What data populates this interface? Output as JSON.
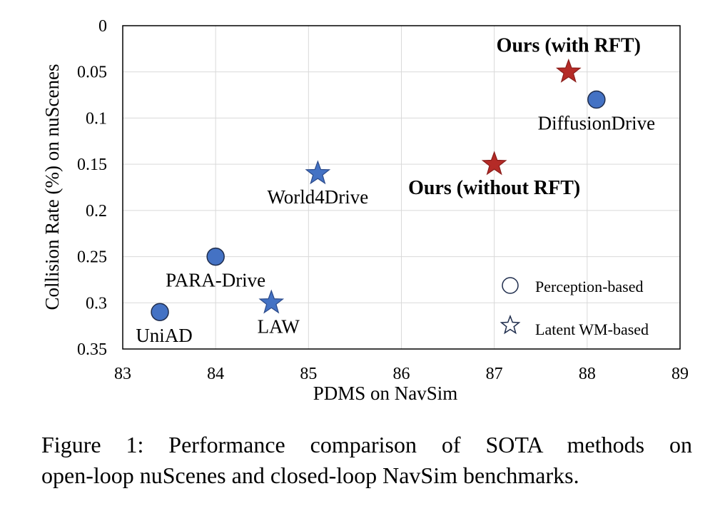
{
  "chart_data": {
    "type": "scatter",
    "xlabel": "PDMS on NavSim",
    "ylabel": "Collision Rate (%) on nuScenes",
    "xlim": [
      83,
      89
    ],
    "ylim": [
      0,
      0.35
    ],
    "y_inverted": true,
    "xticks": [
      "83",
      "84",
      "85",
      "86",
      "87",
      "88",
      "89"
    ],
    "yticks": [
      "0",
      "0.05",
      "0.1",
      "0.15",
      "0.2",
      "0.25",
      "0.3",
      "0.35"
    ],
    "grid": true,
    "legend_position": "bottom-right",
    "legend": [
      {
        "marker": "circle",
        "label": "Perception-based"
      },
      {
        "marker": "star",
        "label": "Latent WM-based"
      }
    ],
    "points": [
      {
        "label": "UniAD",
        "x": 83.4,
        "y": 0.31,
        "marker": "circle",
        "color": "#4472C4",
        "highlight": false,
        "label_pos": "below"
      },
      {
        "label": "PARA-Drive",
        "x": 84.0,
        "y": 0.25,
        "marker": "circle",
        "color": "#4472C4",
        "highlight": false,
        "label_pos": "below"
      },
      {
        "label": "LAW",
        "x": 84.6,
        "y": 0.3,
        "marker": "star",
        "color": "#4472C4",
        "highlight": false,
        "label_pos": "below"
      },
      {
        "label": "World4Drive",
        "x": 85.1,
        "y": 0.16,
        "marker": "star",
        "color": "#4472C4",
        "highlight": false,
        "label_pos": "below"
      },
      {
        "label": "DiffusionDrive",
        "x": 88.1,
        "y": 0.08,
        "marker": "circle",
        "color": "#4472C4",
        "highlight": false,
        "label_pos": "below"
      },
      {
        "label": "Ours (without RFT)",
        "x": 87.0,
        "y": 0.15,
        "marker": "star",
        "color": "#B52B27",
        "highlight": true,
        "label_pos": "below"
      },
      {
        "label": "Ours (with RFT)",
        "x": 87.8,
        "y": 0.05,
        "marker": "star",
        "color": "#B52B27",
        "highlight": true,
        "label_pos": "above"
      }
    ]
  },
  "caption": {
    "line1": "Figure 1: Performance comparison of SOTA methods on",
    "line2": "open-loop nuScenes and closed-loop NavSim benchmarks."
  },
  "colors": {
    "baseline": "#4472C4",
    "ours": "#B52B27",
    "grid": "#d9d9d9",
    "axis": "#000000"
  }
}
